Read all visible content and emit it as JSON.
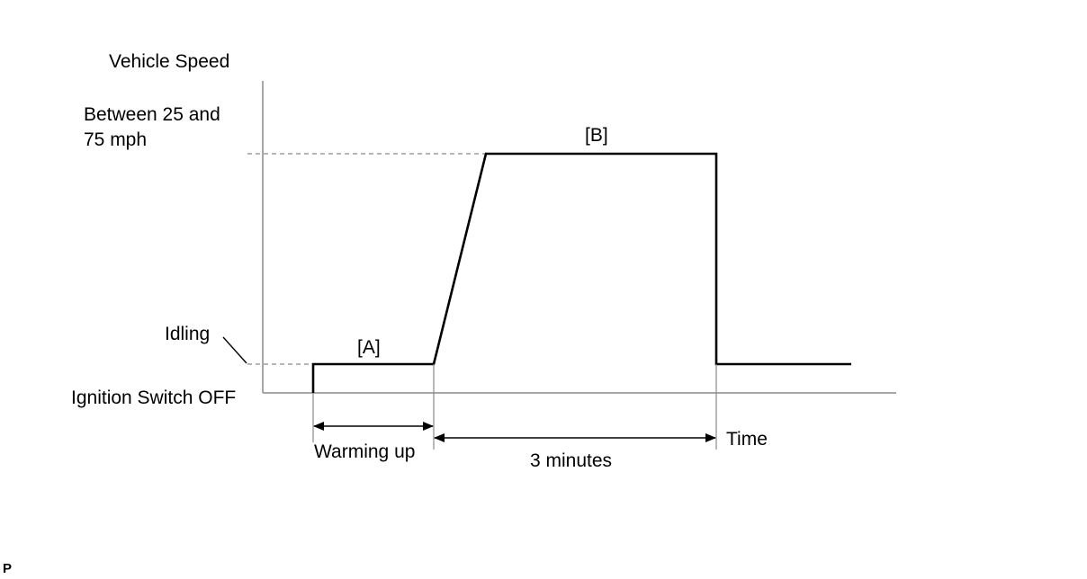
{
  "labels": {
    "y_axis_title": "Vehicle Speed",
    "speed_range_line1": "Between 25 and",
    "speed_range_line2": "75 mph",
    "idling": "Idling",
    "ignition_off": "Ignition Switch OFF",
    "phase_a": "[A]",
    "phase_b": "[B]",
    "warming_up": "Warming up",
    "three_minutes": "3 minutes",
    "time_axis": "Time",
    "corner_mark": "P"
  },
  "colors": {
    "line": "#000000",
    "axis": "#8a8a8a",
    "guide": "#8a8a8a"
  }
}
